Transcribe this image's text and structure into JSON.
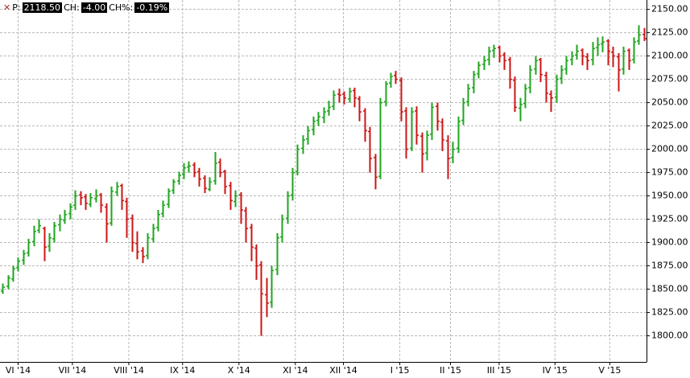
{
  "chart_data": {
    "type": "ohlc",
    "info": {
      "price_label": "P:",
      "price": "2118.50",
      "change_label": "CH:",
      "change": "-4.00",
      "change_pct_label": "CH%:",
      "change_pct": "-0.19%"
    },
    "up_color": "#1fa51f",
    "down_color": "#cc1515",
    "grid": true,
    "ylim": [
      1772,
      2160
    ],
    "yticks": [
      {
        "value": 1800,
        "label": "1800.00"
      },
      {
        "value": 1825,
        "label": "1825.00"
      },
      {
        "value": 1850,
        "label": "1850.00"
      },
      {
        "value": 1875,
        "label": "1875.00"
      },
      {
        "value": 1900,
        "label": "1900.00"
      },
      {
        "value": 1925,
        "label": "1925.00"
      },
      {
        "value": 1950,
        "label": "1950.00"
      },
      {
        "value": 1975,
        "label": "1975.00"
      },
      {
        "value": 2000,
        "label": "2000.00"
      },
      {
        "value": 2025,
        "label": "2025.00"
      },
      {
        "value": 2050,
        "label": "2050.00"
      },
      {
        "value": 2075,
        "label": "2075.00"
      },
      {
        "value": 2100,
        "label": "2100.00"
      },
      {
        "value": 2125,
        "label": "2125.00"
      },
      {
        "value": 2150,
        "label": "2150.00"
      }
    ],
    "xlim": [
      -0.5,
      124.5
    ],
    "xticks": [
      {
        "value": 3,
        "label": "VI '14"
      },
      {
        "value": 13.5,
        "label": "VII '14"
      },
      {
        "value": 24.4,
        "label": "VIII '14"
      },
      {
        "value": 34.8,
        "label": "IX '14"
      },
      {
        "value": 45.7,
        "label": "X '14"
      },
      {
        "value": 56.6,
        "label": "XI '14"
      },
      {
        "value": 65.9,
        "label": "XII '14"
      },
      {
        "value": 76.8,
        "label": "I '15"
      },
      {
        "value": 86.6,
        "label": "II '15"
      },
      {
        "value": 96,
        "label": "III '15"
      },
      {
        "value": 106.8,
        "label": "IV '15"
      },
      {
        "value": 117.4,
        "label": "V '15"
      }
    ],
    "ohlc": [
      [
        1848,
        1856,
        1845,
        1852
      ],
      [
        1853,
        1865,
        1850,
        1862
      ],
      [
        1861,
        1875,
        1858,
        1872
      ],
      [
        1873,
        1884,
        1869,
        1880
      ],
      [
        1881,
        1892,
        1876,
        1888
      ],
      [
        1889,
        1904,
        1885,
        1900
      ],
      [
        1901,
        1918,
        1896,
        1912
      ],
      [
        1913,
        1925,
        1910,
        1918
      ],
      [
        1915,
        1917,
        1880,
        1895
      ],
      [
        1896,
        1910,
        1890,
        1905
      ],
      [
        1904,
        1922,
        1900,
        1918
      ],
      [
        1919,
        1930,
        1912,
        1925
      ],
      [
        1924,
        1935,
        1920,
        1930
      ],
      [
        1931,
        1942,
        1925,
        1938
      ],
      [
        1940,
        1956,
        1935,
        1950
      ],
      [
        1951,
        1955,
        1940,
        1948
      ],
      [
        1949,
        1952,
        1935,
        1942
      ],
      [
        1941,
        1953,
        1938,
        1948
      ],
      [
        1947,
        1957,
        1943,
        1950
      ],
      [
        1951,
        1953,
        1932,
        1940
      ],
      [
        1938,
        1942,
        1900,
        1920
      ],
      [
        1921,
        1960,
        1918,
        1955
      ],
      [
        1954,
        1965,
        1950,
        1960
      ],
      [
        1961,
        1963,
        1935,
        1945
      ],
      [
        1944,
        1948,
        1905,
        1925
      ],
      [
        1926,
        1930,
        1890,
        1900
      ],
      [
        1899,
        1912,
        1882,
        1890
      ],
      [
        1891,
        1895,
        1878,
        1885
      ],
      [
        1886,
        1910,
        1882,
        1905
      ],
      [
        1904,
        1920,
        1900,
        1915
      ],
      [
        1916,
        1935,
        1912,
        1930
      ],
      [
        1931,
        1945,
        1927,
        1940
      ],
      [
        1941,
        1958,
        1937,
        1955
      ],
      [
        1956,
        1968,
        1952,
        1965
      ],
      [
        1966,
        1976,
        1962,
        1972
      ],
      [
        1973,
        1985,
        1968,
        1980
      ],
      [
        1981,
        1987,
        1975,
        1982
      ],
      [
        1983,
        1986,
        1970,
        1975
      ],
      [
        1976,
        1980,
        1960,
        1968
      ],
      [
        1969,
        1972,
        1953,
        1958
      ],
      [
        1957,
        1970,
        1955,
        1965
      ],
      [
        1966,
        1997,
        1962,
        1985
      ],
      [
        1986,
        1990,
        1970,
        1975
      ],
      [
        1976,
        1978,
        1952,
        1960
      ],
      [
        1961,
        1965,
        1935,
        1945
      ],
      [
        1944,
        1956,
        1938,
        1950
      ],
      [
        1951,
        1954,
        1920,
        1935
      ],
      [
        1934,
        1938,
        1900,
        1915
      ],
      [
        1916,
        1920,
        1880,
        1895
      ],
      [
        1894,
        1898,
        1860,
        1875
      ],
      [
        1876,
        1880,
        1800,
        1845
      ],
      [
        1844,
        1862,
        1820,
        1835
      ],
      [
        1836,
        1875,
        1830,
        1870
      ],
      [
        1871,
        1910,
        1865,
        1905
      ],
      [
        1906,
        1930,
        1900,
        1925
      ],
      [
        1926,
        1955,
        1920,
        1950
      ],
      [
        1951,
        1980,
        1945,
        1975
      ],
      [
        1976,
        2005,
        1972,
        2000
      ],
      [
        2001,
        2015,
        1995,
        2010
      ],
      [
        2011,
        2025,
        2005,
        2020
      ],
      [
        2021,
        2035,
        2015,
        2030
      ],
      [
        2031,
        2040,
        2025,
        2035
      ],
      [
        2034,
        2045,
        2028,
        2040
      ],
      [
        2041,
        2052,
        2036,
        2045
      ],
      [
        2046,
        2063,
        2042,
        2058
      ],
      [
        2059,
        2065,
        2050,
        2058
      ],
      [
        2059,
        2062,
        2048,
        2055
      ],
      [
        2054,
        2066,
        2050,
        2062
      ],
      [
        2063,
        2066,
        2045,
        2055
      ],
      [
        2054,
        2057,
        2030,
        2040
      ],
      [
        2041,
        2044,
        2008,
        2020
      ],
      [
        2019,
        2024,
        1975,
        1990
      ],
      [
        1991,
        1995,
        1957,
        1970
      ],
      [
        1971,
        2055,
        1968,
        2050
      ],
      [
        2051,
        2073,
        2046,
        2070
      ],
      [
        2071,
        2082,
        2066,
        2078
      ],
      [
        2079,
        2084,
        2070,
        2075
      ],
      [
        2074,
        2077,
        2030,
        2040
      ],
      [
        2041,
        2045,
        1990,
        2000
      ],
      [
        2001,
        2045,
        1998,
        2040
      ],
      [
        2041,
        2046,
        2005,
        2015
      ],
      [
        2014,
        2018,
        1975,
        1995
      ],
      [
        1996,
        2020,
        1988,
        2015
      ],
      [
        2016,
        2050,
        2010,
        2045
      ],
      [
        2046,
        2050,
        2020,
        2030
      ],
      [
        2029,
        2033,
        1998,
        2010
      ],
      [
        2009,
        2015,
        1968,
        1990
      ],
      [
        1991,
        2008,
        1985,
        2000
      ],
      [
        2001,
        2035,
        1996,
        2030
      ],
      [
        2031,
        2055,
        2026,
        2050
      ],
      [
        2051,
        2070,
        2046,
        2065
      ],
      [
        2066,
        2084,
        2060,
        2080
      ],
      [
        2081,
        2094,
        2076,
        2090
      ],
      [
        2091,
        2100,
        2085,
        2095
      ],
      [
        2096,
        2110,
        2090,
        2105
      ],
      [
        2106,
        2112,
        2098,
        2108
      ],
      [
        2109,
        2111,
        2093,
        2100
      ],
      [
        2101,
        2104,
        2085,
        2095
      ],
      [
        2096,
        2099,
        2065,
        2075
      ],
      [
        2074,
        2078,
        2040,
        2045
      ],
      [
        2044,
        2055,
        2030,
        2048
      ],
      [
        2049,
        2070,
        2044,
        2065
      ],
      [
        2066,
        2090,
        2060,
        2085
      ],
      [
        2086,
        2100,
        2080,
        2095
      ],
      [
        2096,
        2098,
        2072,
        2080
      ],
      [
        2079,
        2083,
        2050,
        2060
      ],
      [
        2059,
        2063,
        2040,
        2055
      ],
      [
        2056,
        2080,
        2050,
        2075
      ],
      [
        2076,
        2090,
        2070,
        2085
      ],
      [
        2086,
        2100,
        2080,
        2095
      ],
      [
        2096,
        2105,
        2090,
        2100
      ],
      [
        2101,
        2112,
        2096,
        2105
      ],
      [
        2106,
        2108,
        2090,
        2100
      ],
      [
        2099,
        2103,
        2085,
        2095
      ],
      [
        2096,
        2115,
        2090,
        2108
      ],
      [
        2109,
        2120,
        2100,
        2112
      ],
      [
        2113,
        2121,
        2104,
        2115
      ],
      [
        2116,
        2118,
        2090,
        2105
      ],
      [
        2104,
        2110,
        2088,
        2100
      ],
      [
        2099,
        2103,
        2062,
        2085
      ],
      [
        2086,
        2110,
        2080,
        2105
      ],
      [
        2106,
        2108,
        2085,
        2095
      ],
      [
        2096,
        2120,
        2092,
        2115
      ],
      [
        2116,
        2133,
        2112,
        2122.5
      ],
      [
        2123,
        2130,
        2116,
        2118.5
      ]
    ]
  }
}
